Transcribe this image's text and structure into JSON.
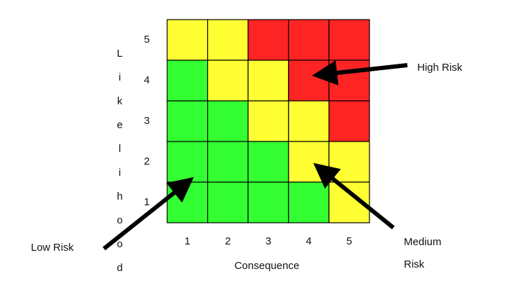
{
  "matrix": {
    "y_axis_title": "Likelihood",
    "x_axis_title": "Consequence",
    "row_labels": [
      "5",
      "4",
      "3",
      "2",
      "1"
    ],
    "column_labels": [
      "1",
      "2",
      "3",
      "4",
      "5"
    ],
    "cell_colors": [
      [
        "#ffff33",
        "#ffff33",
        "#ff2424",
        "#ff2424",
        "#ff2424"
      ],
      [
        "#33ff33",
        "#ffff33",
        "#ffff33",
        "#ff2424",
        "#ff2424"
      ],
      [
        "#33ff33",
        "#33ff33",
        "#ffff33",
        "#ffff33",
        "#ff2424"
      ],
      [
        "#33ff33",
        "#33ff33",
        "#33ff33",
        "#ffff33",
        "#ffff33"
      ],
      [
        "#33ff33",
        "#33ff33",
        "#33ff33",
        "#33ff33",
        "#ffff33"
      ]
    ]
  },
  "annotations": {
    "high": "High Risk",
    "low": "Low Risk",
    "medium": [
      "Medium",
      "Risk"
    ]
  }
}
